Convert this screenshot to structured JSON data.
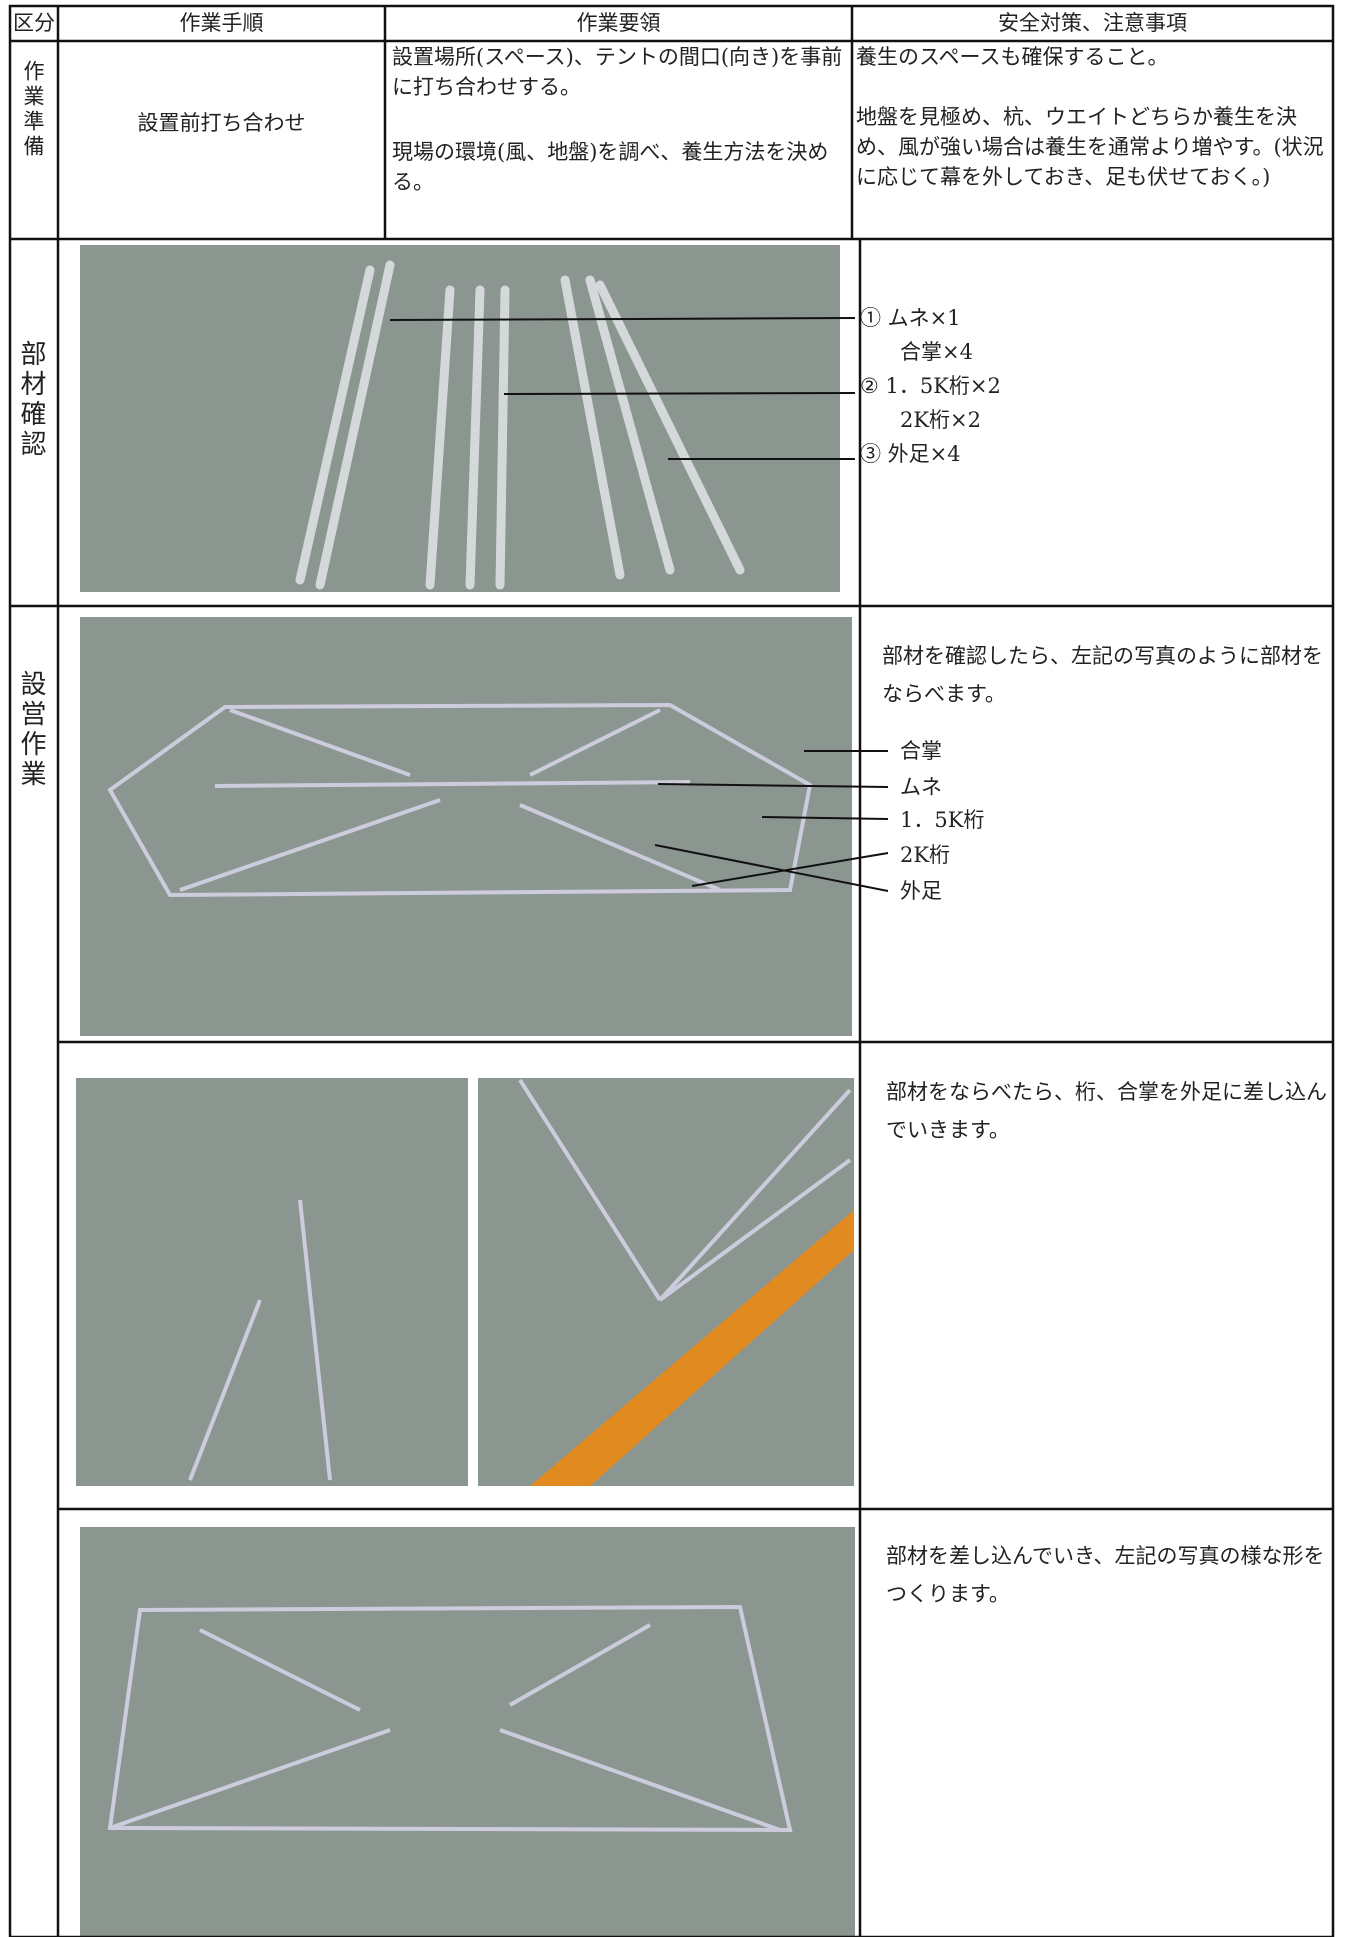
{
  "table": {
    "headers": [
      "区分",
      "作業手順",
      "作業要領",
      "安全対策、注意事項"
    ],
    "rows": [
      {
        "category": "作業準備",
        "step": "設置前打ち合わせ",
        "method": [
          "設置場所(スペース)、テントの間口(向き)を事前に打ち合わせする。",
          "現場の環境(風、地盤)を調べ、養生方法を決める。"
        ],
        "notes": [
          "養生のスペースも確保すること。",
          "地盤を見極め、杭、ウエイトどちらか養生を決め、風が強い場合は養生を通常より増やす。(状況に応じて幕を外しておき、足も伏せておく。)"
        ]
      },
      {
        "category": "部材確認",
        "notes": [
          "① ムネ×1",
          "合掌×4",
          "② 1．5K桁×2",
          "2K桁×2",
          "③ 外足×4"
        ]
      },
      {
        "category": "設営作業",
        "steps": [
          {
            "labels": [
              "合掌",
              "ムネ",
              "1．5K桁",
              "2K桁",
              "外足"
            ],
            "notes": "部材を確認したら、左記の写真のように部材をならべます。"
          },
          {
            "notes": "部材をならべたら、桁、合掌を外足に差し込んでいきます。"
          },
          {
            "notes": "部材を差し込んでいき、左記の写真の様な形をつくります。"
          }
        ]
      }
    ]
  }
}
